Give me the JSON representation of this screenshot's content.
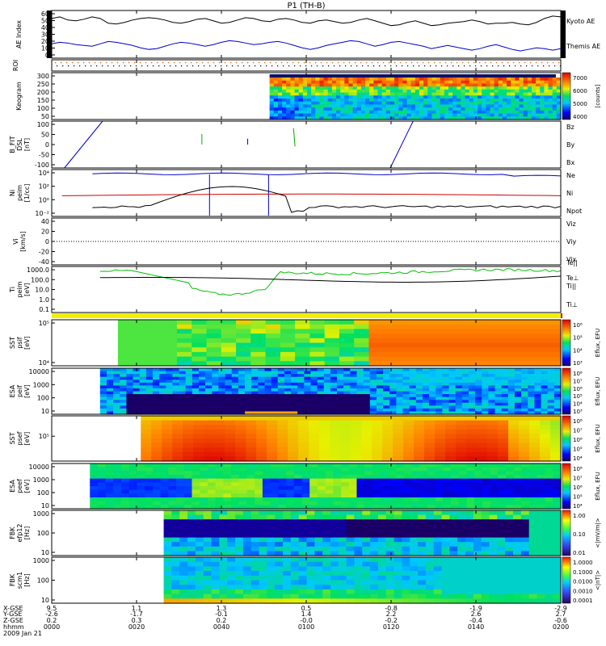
{
  "title": "P1 (TH-B)",
  "x_ticks": [
    "0000",
    "0020",
    "0040",
    "0100",
    "0120",
    "0140",
    "0200"
  ],
  "ephem_labels": {
    "x": "X-GSE",
    "y": "Y-GSE",
    "z": "Z-GSE",
    "hhmm": "hhmm",
    "date": "2009 Jan 21"
  },
  "ephem": {
    "x": [
      "9.5",
      "1.1",
      "1.3",
      "0.5",
      "-0.8",
      "-1.9",
      "-2.9"
    ],
    "y": [
      "-2.6",
      "-1.7",
      "-0.1",
      "1.4",
      "2.2",
      "2.6",
      "2.7"
    ],
    "z": [
      "0.2",
      "0.3",
      "0.2",
      "-0.0",
      "-0.2",
      "-0.4",
      "-0.6"
    ]
  },
  "colors": {
    "black": "#000000",
    "blue": "#0000c8",
    "red": "#d00000",
    "green": "#00b000"
  },
  "chart_data": [
    {
      "id": "ae",
      "type": "line",
      "ylabel": "AE Index",
      "yticks": [
        "60",
        "50",
        "40",
        "30",
        "20",
        "10",
        "0"
      ],
      "ylim": [
        0,
        60
      ],
      "series": [
        {
          "name": "Kyoto AE",
          "color": "#000000",
          "values": [
            50,
            52,
            48,
            47,
            49,
            52,
            50,
            44,
            43,
            45,
            48,
            50,
            51,
            50,
            48,
            45,
            44,
            46,
            49,
            50,
            47,
            44,
            45,
            48,
            51,
            50,
            47,
            46,
            49,
            50,
            48,
            45,
            44,
            47,
            48,
            46,
            44,
            45,
            48,
            50,
            47,
            44,
            41,
            42,
            45,
            47,
            44,
            41,
            42,
            44,
            45,
            46,
            48,
            46,
            43,
            44,
            44,
            45,
            43,
            42,
            45,
            50,
            53,
            52
          ]
        },
        {
          "name": "Themis AE",
          "color": "#0000c8",
          "values": [
            18,
            20,
            19,
            17,
            16,
            15,
            18,
            21,
            20,
            18,
            16,
            13,
            11,
            12,
            15,
            18,
            20,
            19,
            17,
            15,
            17,
            20,
            22,
            21,
            19,
            17,
            18,
            20,
            21,
            19,
            16,
            13,
            11,
            13,
            16,
            18,
            20,
            22,
            21,
            18,
            15,
            17,
            20,
            21,
            19,
            17,
            15,
            12,
            14,
            16,
            14,
            12,
            10,
            12,
            15,
            17,
            14,
            11,
            9,
            11,
            13,
            12,
            10,
            12
          ]
        }
      ]
    },
    {
      "id": "roi",
      "type": "table",
      "ylabel": "ROI"
    },
    {
      "id": "keogram",
      "type": "heatmap",
      "ylabel": "Keogram",
      "yticks": [
        "300",
        "250",
        "200",
        "150",
        "100",
        "50"
      ],
      "ylim": [
        0,
        300
      ],
      "colorbar_ticks": [
        "7000",
        "6000",
        "5000",
        "4000"
      ],
      "colorbar_label": "[counts]"
    },
    {
      "id": "bfit",
      "type": "line",
      "ylabel": "B_FIT\nDSL\n[nT]",
      "yticks": [
        "100",
        "50",
        "0",
        "-50",
        "-100"
      ],
      "ylim": [
        -100,
        100
      ],
      "series": [
        {
          "name": "Bz",
          "color": "#d00000"
        },
        {
          "name": "By",
          "color": "#00b000"
        },
        {
          "name": "Bx",
          "color": "#0000c8"
        }
      ]
    },
    {
      "id": "ni",
      "type": "line",
      "ylabel": "Ni\npeim\n[1/cc]",
      "yticks": [
        "10⁴",
        "10²",
        "10⁰",
        "10⁻²"
      ],
      "ylog": true,
      "series": [
        {
          "name": "Ne",
          "color": "#d00000"
        },
        {
          "name": "Ni",
          "color": "#000000"
        },
        {
          "name": "Npot",
          "color": "#0000c8"
        }
      ]
    },
    {
      "id": "vi",
      "type": "line",
      "ylabel": "Vi\n[km/s]",
      "yticks": [
        "40",
        "20",
        "0",
        "-20",
        "-40"
      ],
      "ylim": [
        -50,
        50
      ],
      "series": [
        {
          "name": "Viz",
          "color": "#d00000"
        },
        {
          "name": "Viy",
          "color": "#00b000"
        },
        {
          "name": "Vix",
          "color": "#0000c8"
        }
      ]
    },
    {
      "id": "ti",
      "type": "line",
      "ylabel": "Ti\npeim\n[eV]",
      "yticks": [
        "1000.0",
        "100.0",
        "10.0",
        "1.0",
        "0.1"
      ],
      "ylog": true,
      "series": [
        {
          "name": "Te||",
          "color": "#000000"
        },
        {
          "name": "Te⊥",
          "color": "#d00000"
        },
        {
          "name": "Ti||",
          "color": "#00b000"
        },
        {
          "name": "Ti⊥",
          "color": "#0000c8"
        }
      ]
    },
    {
      "id": "sst_i",
      "type": "heatmap",
      "ylabel": "SST\npsif\n[eV]",
      "yticks": [
        "10⁵",
        "10⁴"
      ],
      "colorbar_ticks": [
        "10⁶",
        "10⁵",
        "10⁴",
        "10³"
      ],
      "colorbar_label": "Eflux, EFU"
    },
    {
      "id": "esa_i",
      "type": "heatmap",
      "ylabel": "ESA\npeif\n[eV]",
      "yticks": [
        "10000",
        "1000",
        "100",
        "10"
      ],
      "colorbar_ticks": [
        "10⁸",
        "10⁷",
        "10⁶",
        "10⁵",
        "10⁴",
        "10³"
      ],
      "colorbar_label": "Eflux, EFU"
    },
    {
      "id": "sst_e",
      "type": "heatmap",
      "ylabel": "SST\npsef\n[eV]",
      "yticks": [
        "10⁵"
      ],
      "colorbar_ticks": [
        "10⁸",
        "10⁷",
        "10⁶",
        "10⁵",
        "10⁴"
      ],
      "colorbar_label": "Eflux, EFU"
    },
    {
      "id": "esa_e",
      "type": "heatmap",
      "ylabel": "ESA\npeef\n[eV]",
      "yticks": [
        "10000",
        "1000",
        "100",
        "10"
      ],
      "colorbar_ticks": [
        "10⁸",
        "10⁷",
        "10⁶",
        "10⁵",
        "10⁴"
      ],
      "colorbar_label": "Eflux, EFU"
    },
    {
      "id": "fbk_e",
      "type": "heatmap",
      "ylabel": "FBK\nefp12\n[Hz]",
      "yticks": [
        "1000",
        "100",
        "10"
      ],
      "colorbar_ticks": [
        "1.00",
        "0.10",
        "0.01"
      ],
      "colorbar_label": "<|mV/m|>"
    },
    {
      "id": "fbk_b",
      "type": "heatmap",
      "ylabel": "FBK\nscm1\n[Hz]",
      "yticks": [
        "1000",
        "100",
        "10"
      ],
      "colorbar_ticks": [
        "1.0000",
        "0.1000",
        "0.0100",
        "0.0010",
        "0.0001"
      ],
      "colorbar_label": "<|nT|>"
    }
  ]
}
